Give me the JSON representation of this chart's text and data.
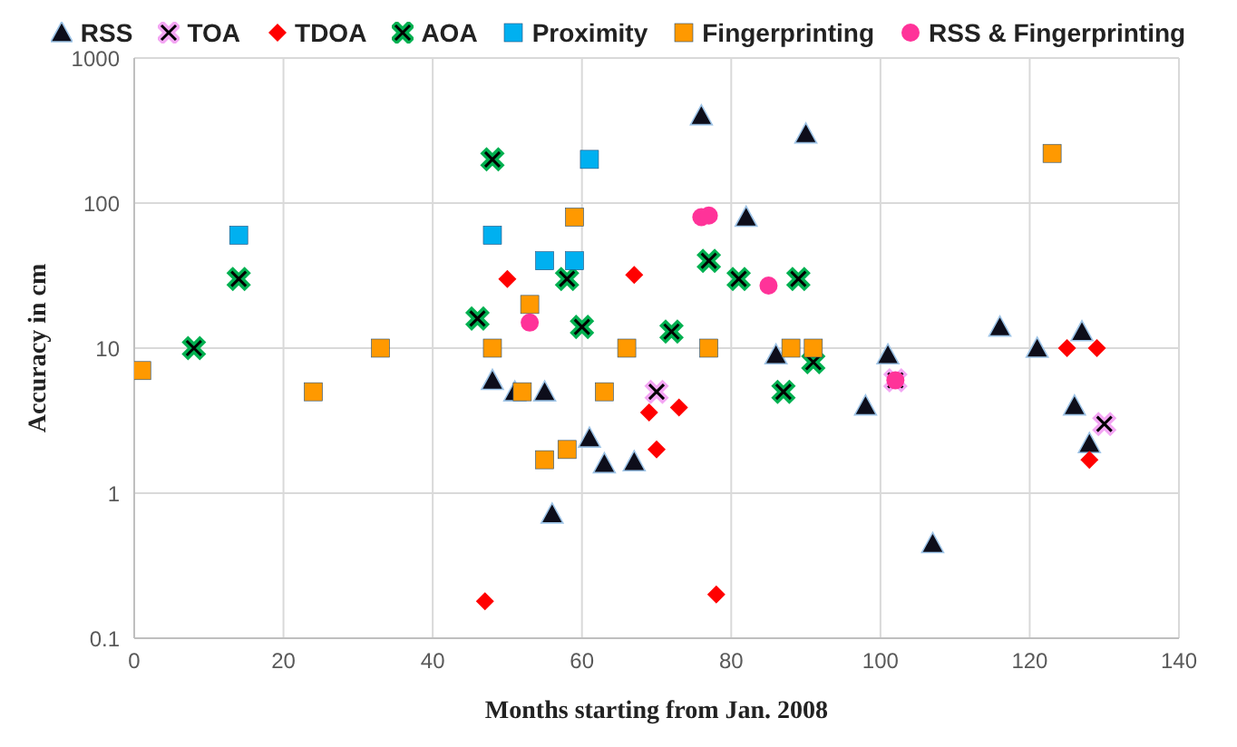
{
  "chart_data": {
    "type": "scatter",
    "xlabel": "Months starting from Jan. 2008",
    "ylabel": "Accuracy in cm",
    "log": "y",
    "grid": true,
    "legend": "top",
    "xlim": [
      0,
      140
    ],
    "xticks": [
      0,
      20,
      40,
      60,
      80,
      100,
      120,
      140
    ],
    "ylim": [
      0.1,
      1000
    ],
    "yticks": [
      0.1,
      1,
      10,
      100,
      1000
    ],
    "series": [
      {
        "name": "RSS",
        "color": "#0d0d1a",
        "marker": "triangle",
        "x": [
          48,
          51,
          55,
          56,
          61,
          63,
          67,
          76,
          82,
          86,
          90,
          98,
          101,
          107,
          116,
          121,
          126,
          127,
          128
        ],
        "values": [
          6,
          5,
          5,
          0.72,
          2.4,
          1.6,
          1.65,
          400,
          80,
          9,
          300,
          4,
          9,
          0.45,
          14,
          10,
          4,
          13,
          2.2
        ]
      },
      {
        "name": "TOA",
        "color": "#f4a6f4",
        "marker": "cross",
        "x": [
          70,
          102,
          130
        ],
        "values": [
          5,
          6,
          3
        ]
      },
      {
        "name": "TDOA",
        "color": "#ff0000",
        "marker": "diamond",
        "x": [
          47,
          50,
          67,
          69,
          70,
          73,
          78,
          125,
          128,
          129
        ],
        "values": [
          0.18,
          30,
          32,
          3.6,
          2,
          3.9,
          0.2,
          10,
          1.7,
          10
        ]
      },
      {
        "name": "AOA",
        "color": "#00b050",
        "marker": "cross",
        "x": [
          8,
          14,
          46,
          48,
          58,
          60,
          72,
          77,
          81,
          87,
          89,
          91
        ],
        "values": [
          10,
          30,
          16,
          200,
          30,
          14,
          13,
          40,
          30,
          5,
          30,
          8
        ]
      },
      {
        "name": "Proximity",
        "color": "#00b0f0",
        "marker": "square",
        "x": [
          14,
          48,
          55,
          59,
          61
        ],
        "values": [
          60,
          60,
          40,
          40,
          200
        ]
      },
      {
        "name": "Fingerprinting",
        "color": "#ff9900",
        "marker": "square",
        "x": [
          1,
          24,
          33,
          48,
          52,
          53,
          55,
          58,
          59,
          63,
          66,
          77,
          88,
          91,
          123
        ],
        "values": [
          7,
          5,
          10,
          10,
          5,
          20,
          1.7,
          2,
          80,
          5,
          10,
          10,
          10,
          10,
          220
        ]
      },
      {
        "name": "RSS & Fingerprinting",
        "color": "#ff3399",
        "marker": "circle",
        "x": [
          53,
          76,
          77,
          85,
          102
        ],
        "values": [
          15,
          80,
          82,
          27,
          6
        ]
      }
    ]
  }
}
